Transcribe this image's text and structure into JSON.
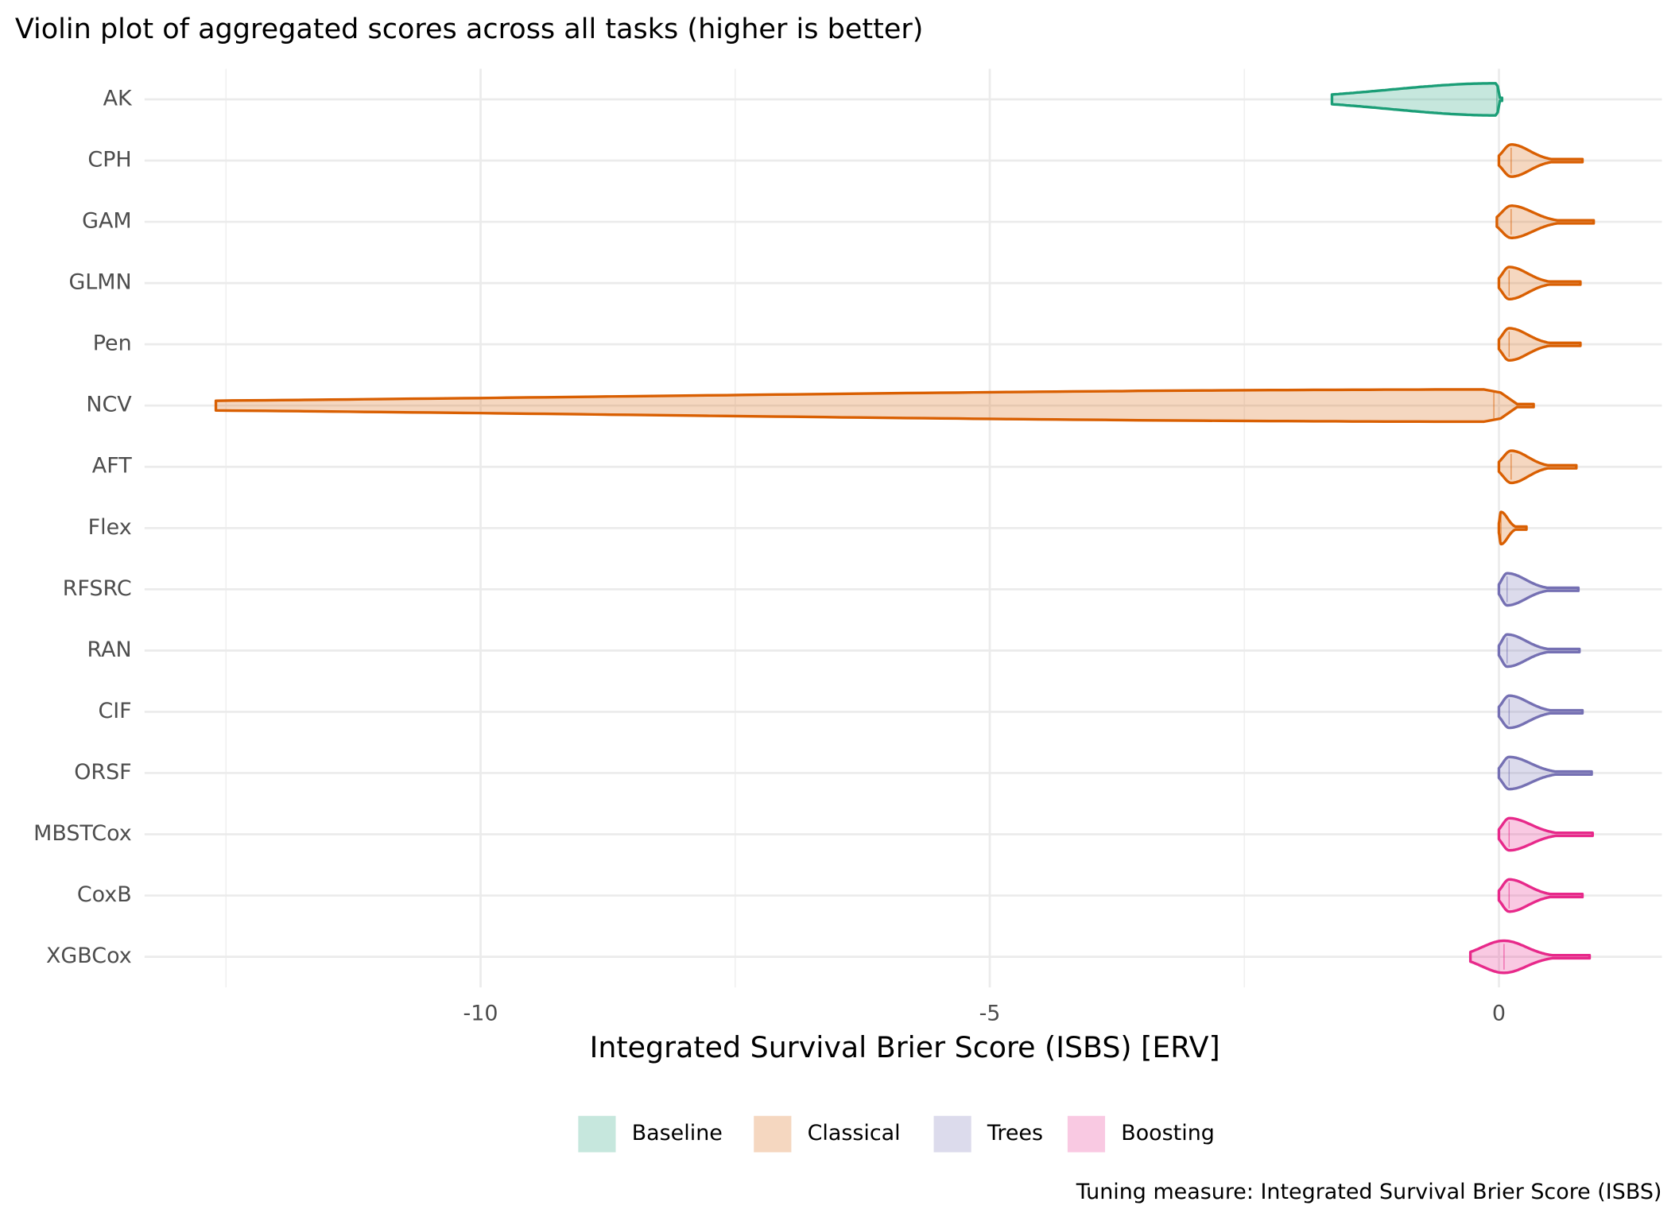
{
  "chart_data": {
    "type": "violin",
    "title": "Violin plot of aggregated scores across all tasks (higher is better)",
    "x_label": "Integrated Survival Brier Score (ISBS) [ERV]",
    "caption": "Tuning measure: Integrated Survival Brier Score (ISBS)",
    "categories": [
      "AK",
      "CPH",
      "GAM",
      "GLMN",
      "Pen",
      "NCV",
      "AFT",
      "Flex",
      "RFSRC",
      "RAN",
      "CIF",
      "ORSF",
      "MBSTCox",
      "CoxB",
      "XGBCox"
    ],
    "xlim": [
      -13.3,
      1.6
    ],
    "xticks": [
      -10,
      -5,
      0
    ],
    "minor_xticks": [
      -12.5,
      -7.5,
      -2.5
    ],
    "grid": true,
    "legend_position": "bottom",
    "series": [
      {
        "name": "Baseline",
        "color": "#1b9e77",
        "min": [
          -1.64,
          null,
          null,
          null,
          null,
          null,
          null,
          null,
          null,
          null,
          null,
          null,
          null,
          null,
          null
        ],
        "median": [
          -0.02,
          null,
          null,
          null,
          null,
          null,
          null,
          null,
          null,
          null,
          null,
          null,
          null,
          null,
          null
        ],
        "max": [
          0.03,
          null,
          null,
          null,
          null,
          null,
          null,
          null,
          null,
          null,
          null,
          null,
          null,
          null,
          null
        ]
      },
      {
        "name": "Classical",
        "color": "#d95f02",
        "min": [
          null,
          0.0,
          -0.02,
          0.0,
          0.0,
          -12.6,
          0.0,
          0.0,
          null,
          null,
          null,
          null,
          null,
          null,
          null
        ],
        "median": [
          null,
          0.12,
          0.12,
          0.1,
          0.1,
          -0.05,
          0.12,
          0.02,
          null,
          null,
          null,
          null,
          null,
          null,
          null
        ],
        "max": [
          null,
          0.82,
          0.93,
          0.8,
          0.8,
          0.34,
          0.76,
          0.27,
          null,
          null,
          null,
          null,
          null,
          null,
          null
        ]
      },
      {
        "name": "Trees",
        "color": "#7570b3",
        "min": [
          null,
          null,
          null,
          null,
          null,
          null,
          null,
          null,
          0.0,
          0.0,
          0.0,
          0.0,
          null,
          null,
          null
        ],
        "median": [
          null,
          null,
          null,
          null,
          null,
          null,
          null,
          null,
          0.08,
          0.08,
          0.1,
          0.1,
          null,
          null,
          null
        ],
        "max": [
          null,
          null,
          null,
          null,
          null,
          null,
          null,
          null,
          0.78,
          0.79,
          0.82,
          0.91,
          null,
          null,
          null
        ]
      },
      {
        "name": "Boosting",
        "color": "#e7298a",
        "min": [
          null,
          null,
          null,
          null,
          null,
          null,
          null,
          null,
          null,
          null,
          null,
          null,
          0.0,
          0.0,
          -0.28
        ],
        "median": [
          null,
          null,
          null,
          null,
          null,
          null,
          null,
          null,
          null,
          null,
          null,
          null,
          0.1,
          0.1,
          0.05
        ],
        "max": [
          null,
          null,
          null,
          null,
          null,
          null,
          null,
          null,
          null,
          null,
          null,
          null,
          0.92,
          0.82,
          0.89
        ]
      }
    ]
  }
}
